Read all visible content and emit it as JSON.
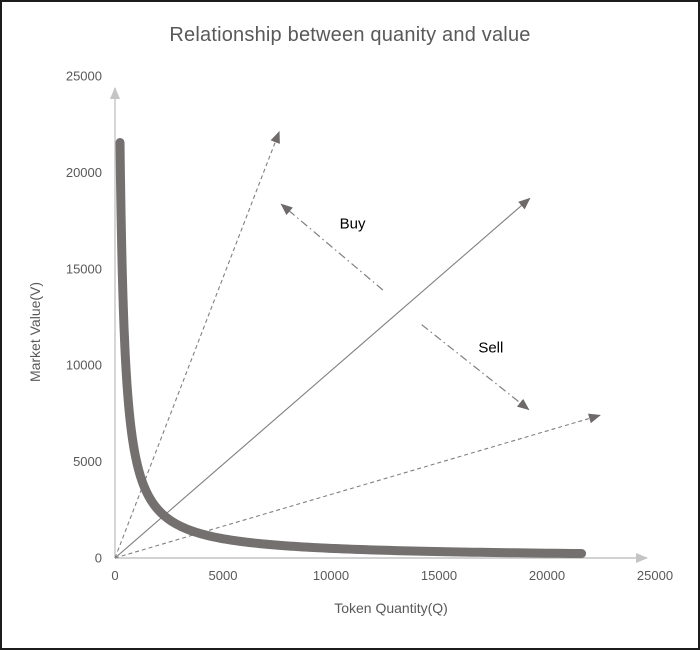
{
  "chart_data": {
    "type": "scatter",
    "title": "Relationship between quanity and value",
    "xlabel": "Token Quantity(Q)",
    "ylabel": "Market Value(V)",
    "xlim": [
      0,
      25000
    ],
    "ylim": [
      0,
      25000
    ],
    "x_ticks": [
      0,
      5000,
      10000,
      15000,
      20000,
      25000
    ],
    "y_ticks": [
      0,
      5000,
      10000,
      15000,
      20000,
      25000
    ],
    "grid": false,
    "legend": "none",
    "curve": {
      "name": "bonding-curve",
      "equation": "V = k / Q",
      "k": 5000000,
      "q_min": 232,
      "q_max": 21600,
      "sample_points": [
        {
          "Q": 232,
          "V": 21552
        },
        {
          "Q": 500,
          "V": 10000
        },
        {
          "Q": 1000,
          "V": 5000
        },
        {
          "Q": 2500,
          "V": 2000
        },
        {
          "Q": 5000,
          "V": 1000
        },
        {
          "Q": 10000,
          "V": 500
        },
        {
          "Q": 15000,
          "V": 333
        },
        {
          "Q": 21600,
          "V": 231
        }
      ]
    },
    "rays": [
      {
        "name": "upper-bound-line",
        "from": [
          0,
          0
        ],
        "to": [
          7600,
          22100
        ],
        "style": "dashed",
        "approx_slope": 3
      },
      {
        "name": "fair-value-line",
        "from": [
          0,
          0
        ],
        "to": [
          19200,
          18650
        ],
        "style": "solid",
        "approx_slope": 1
      },
      {
        "name": "lower-bound-line",
        "from": [
          0,
          0
        ],
        "to": [
          22450,
          7400
        ],
        "style": "dashed",
        "approx_slope": 0.33
      }
    ],
    "annotations": [
      {
        "label": "Buy",
        "style": "dash-dot",
        "arrow_from": [
          12400,
          13900
        ],
        "arrow_to": [
          7700,
          18350
        ],
        "label_at": [
          11000,
          17300
        ]
      },
      {
        "label": "Sell",
        "style": "dash-dot",
        "arrow_from": [
          14200,
          12100
        ],
        "arrow_to": [
          19150,
          7700
        ],
        "label_at": [
          17400,
          10900
        ]
      }
    ],
    "colors": {
      "curve": "#757070",
      "ray_line": "#808080",
      "annotation_line": "#7f7f7f",
      "arrowhead": "#6e6a6a",
      "axis": "#c4c4c4",
      "tick_label": "#595959",
      "title": "#595959",
      "annotation_text": "#000000",
      "frame_border": "#1c1c1c",
      "background": "#ffffff"
    }
  }
}
